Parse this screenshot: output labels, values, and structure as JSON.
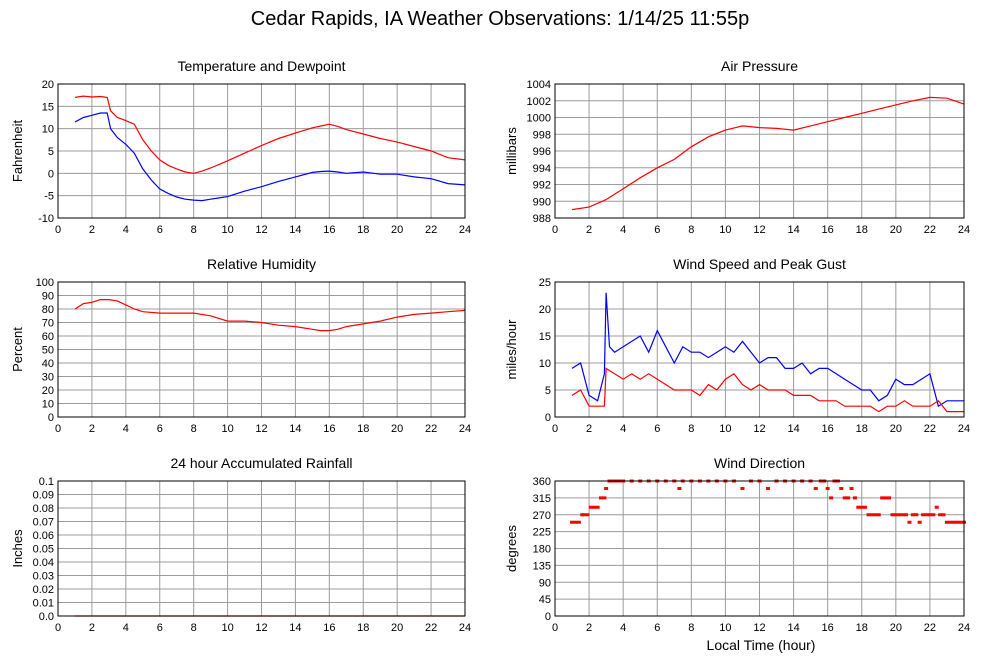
{
  "page": {
    "title": "Cedar Rapids, IA Weather Observations: 1/14/25 11:55p",
    "xaxis_title": "Local Time (hour)"
  },
  "chart_data": [
    {
      "id": "temperature",
      "type": "line",
      "title": "Temperature and Dewpoint",
      "ylabel": "Fahrenheit",
      "xlim": [
        0,
        24
      ],
      "ylim": [
        -10,
        20
      ],
      "xticks": [
        0,
        2,
        4,
        6,
        8,
        10,
        12,
        14,
        16,
        18,
        20,
        22,
        24
      ],
      "yticks": [
        -10,
        -5,
        0,
        5,
        10,
        15,
        20
      ],
      "grid": true,
      "series": [
        {
          "color": "#ff0000",
          "x": [
            1.0,
            1.5,
            2.0,
            2.5,
            2.9,
            3.1,
            3.5,
            4.0,
            4.5,
            5.0,
            5.5,
            6.0,
            6.5,
            7.0,
            7.5,
            8.0,
            8.5,
            9.0,
            9.5,
            10.0,
            11.0,
            12.0,
            13.0,
            14.0,
            15.0,
            15.5,
            16.0,
            16.5,
            17.0,
            18.0,
            19.0,
            20.0,
            21.0,
            22.0,
            23.0,
            24.0
          ],
          "y": [
            17.0,
            17.3,
            17.1,
            17.2,
            17.0,
            14.0,
            12.5,
            11.8,
            11.0,
            7.5,
            5.0,
            3.0,
            1.8,
            1.0,
            0.3,
            0.0,
            0.5,
            1.2,
            2.0,
            2.8,
            4.5,
            6.2,
            7.8,
            9.0,
            10.2,
            10.6,
            11.0,
            10.5,
            9.8,
            8.8,
            7.8,
            7.0,
            6.0,
            5.0,
            3.5,
            3.0
          ]
        },
        {
          "color": "#0000ff",
          "x": [
            1.0,
            1.5,
            2.0,
            2.5,
            2.9,
            3.1,
            3.5,
            4.0,
            4.5,
            5.0,
            5.5,
            6.0,
            6.5,
            7.0,
            7.5,
            8.0,
            8.5,
            9.0,
            9.5,
            10.0,
            11.0,
            12.0,
            13.0,
            14.0,
            15.0,
            15.5,
            16.0,
            16.5,
            17.0,
            18.0,
            19.0,
            20.0,
            21.0,
            22.0,
            23.0,
            24.0
          ],
          "y": [
            11.5,
            12.5,
            13.0,
            13.5,
            13.5,
            10.0,
            8.0,
            6.5,
            4.5,
            1.0,
            -1.5,
            -3.5,
            -4.5,
            -5.3,
            -5.8,
            -6.0,
            -6.1,
            -5.8,
            -5.5,
            -5.2,
            -4.0,
            -3.0,
            -1.8,
            -0.8,
            0.2,
            0.4,
            0.5,
            0.3,
            0.0,
            0.3,
            -0.2,
            -0.2,
            -0.8,
            -1.2,
            -2.3,
            -2.6
          ]
        }
      ]
    },
    {
      "id": "pressure",
      "type": "line",
      "title": "Air Pressure",
      "ylabel": "millibars",
      "xlim": [
        0,
        24
      ],
      "ylim": [
        988,
        1004
      ],
      "xticks": [
        0,
        2,
        4,
        6,
        8,
        10,
        12,
        14,
        16,
        18,
        20,
        22,
        24
      ],
      "yticks": [
        988,
        990,
        992,
        994,
        996,
        998,
        1000,
        1002,
        1004
      ],
      "grid": true,
      "series": [
        {
          "color": "#ff0000",
          "x": [
            1.0,
            2.0,
            3.0,
            4.0,
            5.0,
            6.0,
            7.0,
            8.0,
            9.0,
            10.0,
            11.0,
            12.0,
            13.0,
            14.0,
            15.0,
            16.0,
            17.0,
            18.0,
            19.0,
            20.0,
            21.0,
            22.0,
            23.0,
            24.0
          ],
          "y": [
            989.0,
            989.3,
            990.2,
            991.5,
            992.8,
            994.0,
            995.0,
            996.5,
            997.7,
            998.5,
            999.0,
            998.8,
            998.7,
            998.5,
            999.0,
            999.5,
            1000.0,
            1000.5,
            1001.0,
            1001.5,
            1002.0,
            1002.4,
            1002.3,
            1001.6
          ]
        }
      ]
    },
    {
      "id": "humidity",
      "type": "line",
      "title": "Relative Humidity",
      "ylabel": "Percent",
      "xlim": [
        0,
        24
      ],
      "ylim": [
        0,
        100
      ],
      "xticks": [
        0,
        2,
        4,
        6,
        8,
        10,
        12,
        14,
        16,
        18,
        20,
        22,
        24
      ],
      "yticks": [
        0,
        10,
        20,
        30,
        40,
        50,
        60,
        70,
        80,
        90,
        100
      ],
      "grid": true,
      "series": [
        {
          "color": "#ff0000",
          "x": [
            1.0,
            1.5,
            2.0,
            2.5,
            3.0,
            3.5,
            4.0,
            4.5,
            5.0,
            6.0,
            7.0,
            8.0,
            9.0,
            10.0,
            11.0,
            12.0,
            13.0,
            14.0,
            15.0,
            15.5,
            16.0,
            16.5,
            17.0,
            18.0,
            19.0,
            20.0,
            21.0,
            22.0,
            23.0,
            24.0
          ],
          "y": [
            80,
            84,
            85,
            87,
            87,
            86,
            83,
            80,
            78,
            77,
            77,
            77,
            75,
            71,
            71,
            70,
            68,
            67,
            65,
            64,
            64,
            65,
            67,
            69,
            71,
            74,
            76,
            77,
            78,
            79
          ]
        }
      ]
    },
    {
      "id": "wind",
      "type": "line",
      "title": "Wind Speed and Peak Gust",
      "ylabel": "miles/hour",
      "xlim": [
        0,
        24
      ],
      "ylim": [
        0,
        25
      ],
      "xticks": [
        0,
        2,
        4,
        6,
        8,
        10,
        12,
        14,
        16,
        18,
        20,
        22,
        24
      ],
      "yticks": [
        0,
        5,
        10,
        15,
        20,
        25
      ],
      "grid": true,
      "series": [
        {
          "color": "#0000ff",
          "x": [
            1.0,
            1.5,
            2.0,
            2.5,
            2.9,
            3.0,
            3.2,
            3.5,
            4.0,
            4.5,
            5.0,
            5.5,
            6.0,
            6.5,
            7.0,
            7.5,
            8.0,
            8.5,
            9.0,
            9.5,
            10.0,
            10.5,
            11.0,
            11.5,
            12.0,
            12.5,
            13.0,
            13.5,
            14.0,
            14.5,
            15.0,
            15.5,
            16.0,
            16.5,
            17.0,
            17.5,
            18.0,
            18.5,
            19.0,
            19.5,
            20.0,
            20.5,
            21.0,
            21.5,
            22.0,
            22.5,
            23.0,
            23.5,
            24.0
          ],
          "y": [
            9,
            10,
            4,
            3,
            8,
            23,
            13,
            12,
            13,
            14,
            15,
            12,
            16,
            13,
            10,
            13,
            12,
            12,
            11,
            12,
            13,
            12,
            14,
            12,
            10,
            11,
            11,
            9,
            9,
            10,
            8,
            9,
            9,
            8,
            7,
            6,
            5,
            5,
            3,
            4,
            7,
            6,
            6,
            7,
            8,
            2,
            3,
            3,
            3
          ]
        },
        {
          "color": "#ff0000",
          "x": [
            1.0,
            1.5,
            2.0,
            2.5,
            2.9,
            3.0,
            3.5,
            4.0,
            4.5,
            5.0,
            5.5,
            6.0,
            6.5,
            7.0,
            7.5,
            8.0,
            8.5,
            9.0,
            9.5,
            10.0,
            10.5,
            11.0,
            11.5,
            12.0,
            12.5,
            13.0,
            13.5,
            14.0,
            14.5,
            15.0,
            15.5,
            16.0,
            16.5,
            17.0,
            17.5,
            18.0,
            18.5,
            19.0,
            19.5,
            20.0,
            20.5,
            21.0,
            21.5,
            22.0,
            22.5,
            23.0,
            23.5,
            24.0
          ],
          "y": [
            4,
            5,
            2,
            2,
            2,
            9,
            8,
            7,
            8,
            7,
            8,
            7,
            6,
            5,
            5,
            5,
            4,
            6,
            5,
            7,
            8,
            6,
            5,
            6,
            5,
            5,
            5,
            4,
            4,
            4,
            3,
            3,
            3,
            2,
            2,
            2,
            2,
            1,
            2,
            2,
            3,
            2,
            2,
            2,
            3,
            1,
            1,
            1
          ]
        }
      ]
    },
    {
      "id": "rainfall",
      "type": "line",
      "title": "24 hour Accumulated Rainfall",
      "ylabel": "Inches",
      "xlim": [
        0,
        24
      ],
      "ylim": [
        0,
        0.1
      ],
      "xticks": [
        0,
        2,
        4,
        6,
        8,
        10,
        12,
        14,
        16,
        18,
        20,
        22,
        24
      ],
      "yticks": [
        "0.0",
        "0.01",
        "0.02",
        "0.03",
        "0.04",
        "0.05",
        "0.06",
        "0.07",
        "0.08",
        "0.09",
        "0.1"
      ],
      "grid": true,
      "series": [
        {
          "color": "#ff0000",
          "x": [
            1.0,
            24.0
          ],
          "y": [
            0.0,
            0.0
          ]
        }
      ]
    },
    {
      "id": "direction",
      "type": "scatter",
      "title": "Wind Direction",
      "ylabel": "degrees",
      "xlim": [
        0,
        24
      ],
      "ylim": [
        0,
        360
      ],
      "xticks": [
        0,
        2,
        4,
        6,
        8,
        10,
        12,
        14,
        16,
        18,
        20,
        22,
        24
      ],
      "yticks": [
        0,
        45,
        90,
        135,
        180,
        225,
        270,
        315,
        360
      ],
      "grid": true,
      "series": [
        {
          "color": "#ff0000",
          "x": [
            1.0,
            1.2,
            1.4,
            1.6,
            1.7,
            1.9,
            2.1,
            2.3,
            2.5,
            2.7,
            2.9,
            3.0,
            3.2,
            3.4,
            3.6,
            3.8,
            4.0,
            4.5,
            5.0,
            5.5,
            6.0,
            6.5,
            7.0,
            7.3,
            7.5,
            8.0,
            8.5,
            9.0,
            9.5,
            10.0,
            10.5,
            11.0,
            11.5,
            12.0,
            12.5,
            13.0,
            13.5,
            14.0,
            14.5,
            15.0,
            15.3,
            15.6,
            15.8,
            16.0,
            16.2,
            16.4,
            16.6,
            16.8,
            17.0,
            17.2,
            17.4,
            17.6,
            17.8,
            18.0,
            18.2,
            18.4,
            18.6,
            18.8,
            19.0,
            19.2,
            19.4,
            19.6,
            19.8,
            20.0,
            20.2,
            20.4,
            20.6,
            20.8,
            21.0,
            21.2,
            21.4,
            21.6,
            21.8,
            22.0,
            22.2,
            22.4,
            22.6,
            22.8,
            23.0,
            23.2,
            23.4,
            23.6,
            23.8,
            24.0
          ],
          "y": [
            250,
            250,
            250,
            270,
            270,
            270,
            290,
            290,
            290,
            315,
            315,
            340,
            360,
            360,
            360,
            360,
            360,
            360,
            360,
            360,
            360,
            360,
            360,
            340,
            360,
            360,
            360,
            360,
            360,
            360,
            360,
            340,
            360,
            360,
            340,
            360,
            360,
            360,
            360,
            360,
            340,
            360,
            360,
            340,
            315,
            360,
            360,
            340,
            315,
            315,
            340,
            315,
            290,
            290,
            290,
            270,
            270,
            270,
            270,
            315,
            315,
            315,
            270,
            270,
            270,
            270,
            270,
            250,
            270,
            270,
            250,
            270,
            270,
            270,
            270,
            290,
            270,
            270,
            250,
            250,
            250,
            250,
            250,
            250
          ]
        }
      ]
    }
  ]
}
